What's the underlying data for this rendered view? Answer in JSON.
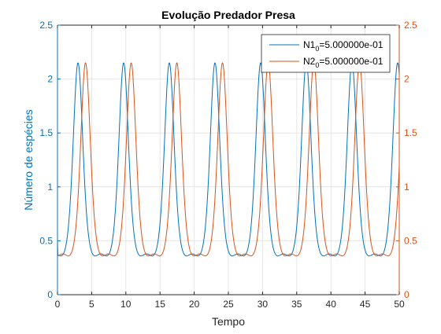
{
  "chart_data": {
    "type": "line",
    "title": "Evolução Predador Presa",
    "xlabel": "Tempo",
    "ylabel": "Número de espécies",
    "xlim": [
      0,
      50
    ],
    "ylim_left": [
      0,
      2.5
    ],
    "ylim_right": [
      0,
      2.5
    ],
    "x_ticks": [
      0,
      5,
      10,
      15,
      20,
      25,
      30,
      35,
      40,
      45,
      50
    ],
    "y_ticks_left": [
      0,
      0.5,
      1,
      1.5,
      2,
      2.5
    ],
    "y_ticks_right": [
      0,
      0.5,
      1,
      1.5,
      2,
      2.5
    ],
    "y_tick_labels_left": [
      "0",
      "0.5",
      "1",
      "1.5",
      "2",
      "2.5"
    ],
    "y_tick_labels_right": [
      "0",
      "0.5",
      "1",
      "1.5",
      "2",
      "2.5"
    ],
    "grid": true,
    "legend_position": "top-right",
    "colors": {
      "left_axis": "#0072BD",
      "right_axis": "#D95319",
      "axes": "#262626",
      "grid": "#e6e6e6"
    },
    "series": [
      {
        "name_base": "N1",
        "name_sub": "0",
        "name_suffix": "=5.000000e-01",
        "color": "#0072BD",
        "axis": "left",
        "min": 0.36,
        "max": 2.15,
        "period": 6.68,
        "peak_times": [
          3.0,
          9.68,
          16.36,
          23.04,
          29.72,
          36.4,
          43.08,
          49.76
        ],
        "initial_value": 0.5
      },
      {
        "name_base": "N2",
        "name_sub": "0",
        "name_suffix": "=5.000000e-01",
        "color": "#D95319",
        "axis": "right",
        "min": 0.36,
        "max": 2.15,
        "period": 6.68,
        "peak_times": [
          4.1,
          10.78,
          17.46,
          24.14,
          30.82,
          37.5,
          44.18
        ],
        "initial_value": 0.5
      }
    ]
  }
}
